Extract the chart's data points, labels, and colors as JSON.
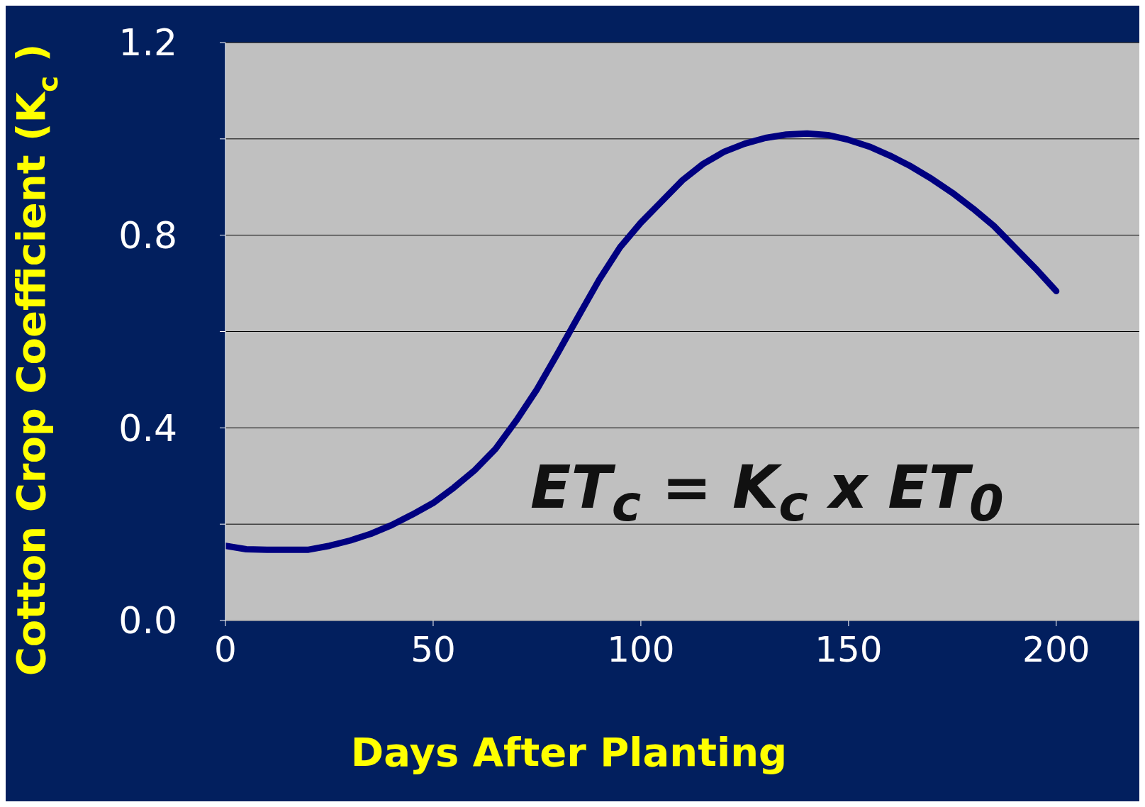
{
  "chart_data": {
    "type": "line",
    "xlabel": "Days After Planting",
    "ylabel": "Cotton Crop Coefficient (K$_{c}$)",
    "annotations": [
      "ET$_{c}$ = K$_{c}$ x ET$_{0}$"
    ],
    "x": [
      0,
      5,
      10,
      20,
      25,
      30,
      35,
      40,
      45,
      50,
      55,
      60,
      65,
      70,
      75,
      80,
      85,
      90,
      95,
      100,
      105,
      110,
      115,
      120,
      125,
      130,
      135,
      140,
      145,
      150,
      155,
      160,
      165,
      170,
      175,
      180,
      185,
      190,
      195,
      200
    ],
    "series": [
      {
        "color": "#000080",
        "values": [
          0.155,
          0.148,
          0.147,
          0.147,
          0.155,
          0.166,
          0.18,
          0.198,
          0.22,
          0.244,
          0.276,
          0.312,
          0.356,
          0.415,
          0.48,
          0.555,
          0.632,
          0.708,
          0.775,
          0.826,
          0.87,
          0.914,
          0.948,
          0.973,
          0.99,
          1.002,
          1.009,
          1.011,
          1.008,
          0.998,
          0.984,
          0.965,
          0.943,
          0.917,
          0.888,
          0.855,
          0.819,
          0.775,
          0.731,
          0.684
        ]
      }
    ],
    "xlim": [
      0,
      220
    ],
    "xticks": [
      0,
      50,
      100,
      150,
      200
    ],
    "ylim": [
      0,
      1.2
    ],
    "yticks": [
      {
        "value": 0,
        "label": "0.0"
      },
      {
        "value": 0.2,
        "label": null
      },
      0.4,
      {
        "value": 0.6,
        "label": null
      },
      0.8,
      {
        "value": 1,
        "label": null
      },
      1.2
    ],
    "grid": "y"
  }
}
